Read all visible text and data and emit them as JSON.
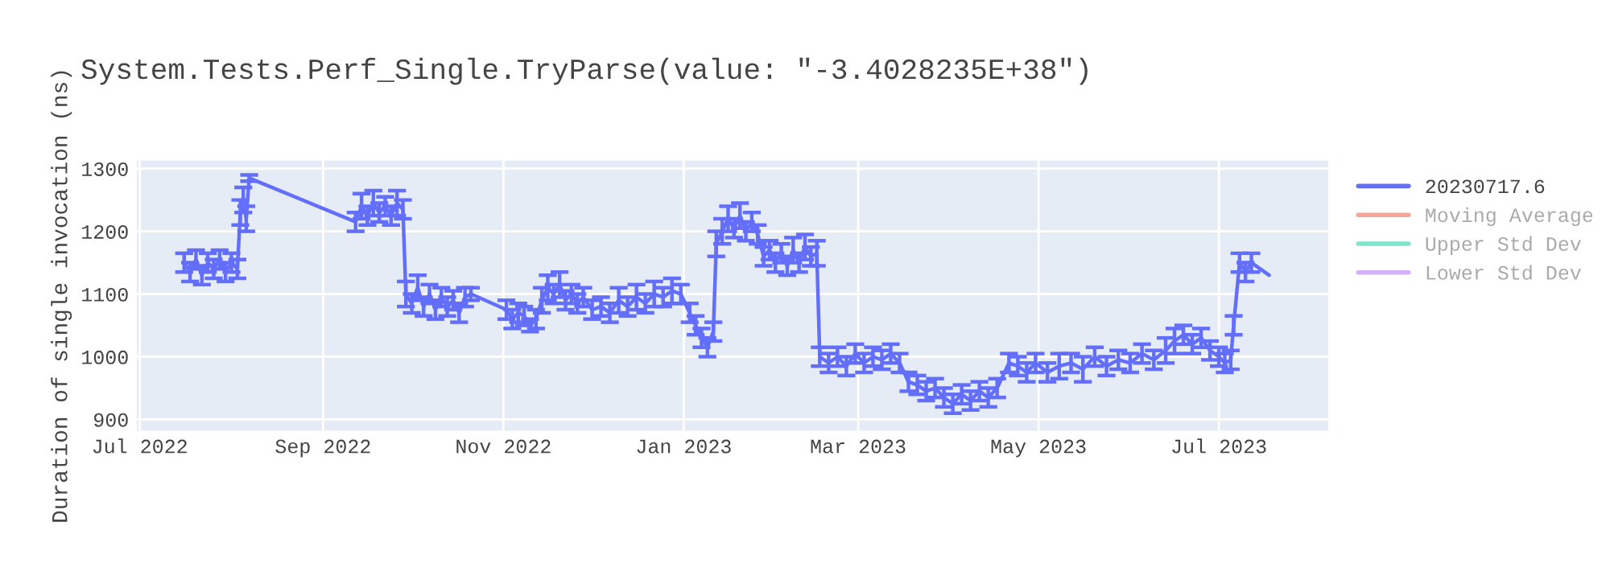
{
  "chart_data": {
    "type": "line",
    "title": "System.Tests.Perf_Single.TryParse(value: \"-3.4028235E+38\")",
    "ylabel": "Duration of single invocation (ns)",
    "xlim": [
      "2022-06-30",
      "2023-08-07"
    ],
    "ylim": [
      882,
      1313
    ],
    "xticks": [
      {
        "value": "2022-07-01",
        "label": "Jul 2022"
      },
      {
        "value": "2022-09-01",
        "label": "Sep 2022"
      },
      {
        "value": "2022-11-01",
        "label": "Nov 2022"
      },
      {
        "value": "2023-01-01",
        "label": "Jan 2023"
      },
      {
        "value": "2023-03-01",
        "label": "Mar 2023"
      },
      {
        "value": "2023-05-01",
        "label": "May 2023"
      },
      {
        "value": "2023-07-01",
        "label": "Jul 2023"
      }
    ],
    "yticks": [
      900,
      1000,
      1100,
      1200,
      1300
    ],
    "grid": true,
    "legend": "top right",
    "marker": "none",
    "line_style": "solid",
    "x": [
      "2022-07-16",
      "2022-07-18",
      "2022-07-20",
      "2022-07-22",
      "2022-07-24",
      "2022-07-26",
      "2022-07-28",
      "2022-07-30",
      "2022-08-01",
      "2022-08-03",
      "2022-08-04",
      "2022-08-05",
      "2022-08-06",
      "2022-08-07",
      "2022-09-12",
      "2022-09-14",
      "2022-09-16",
      "2022-09-18",
      "2022-09-20",
      "2022-09-22",
      "2022-09-24",
      "2022-09-26",
      "2022-09-28",
      "2022-09-29",
      "2022-10-01",
      "2022-10-03",
      "2022-10-05",
      "2022-10-07",
      "2022-10-09",
      "2022-10-11",
      "2022-10-13",
      "2022-10-15",
      "2022-10-17",
      "2022-10-19",
      "2022-10-21",
      "2022-11-02",
      "2022-11-04",
      "2022-11-06",
      "2022-11-08",
      "2022-11-10",
      "2022-11-12",
      "2022-11-14",
      "2022-11-16",
      "2022-11-18",
      "2022-11-20",
      "2022-11-22",
      "2022-11-24",
      "2022-11-26",
      "2022-11-28",
      "2022-12-01",
      "2022-12-04",
      "2022-12-07",
      "2022-12-10",
      "2022-12-13",
      "2022-12-16",
      "2022-12-19",
      "2022-12-22",
      "2022-12-25",
      "2022-12-28",
      "2022-12-31",
      "2023-01-03",
      "2023-01-05",
      "2023-01-07",
      "2023-01-09",
      "2023-01-11",
      "2023-01-12",
      "2023-01-14",
      "2023-01-16",
      "2023-01-18",
      "2023-01-20",
      "2023-01-22",
      "2023-01-24",
      "2023-01-26",
      "2023-01-28",
      "2023-01-30",
      "2023-02-01",
      "2023-02-03",
      "2023-02-05",
      "2023-02-07",
      "2023-02-09",
      "2023-02-11",
      "2023-02-13",
      "2023-02-15",
      "2023-02-16",
      "2023-02-19",
      "2023-02-22",
      "2023-02-25",
      "2023-02-28",
      "2023-03-03",
      "2023-03-06",
      "2023-03-09",
      "2023-03-12",
      "2023-03-15",
      "2023-03-18",
      "2023-03-21",
      "2023-03-24",
      "2023-03-27",
      "2023-03-30",
      "2023-04-02",
      "2023-04-05",
      "2023-04-08",
      "2023-04-11",
      "2023-04-14",
      "2023-04-17",
      "2023-04-21",
      "2023-04-24",
      "2023-04-27",
      "2023-04-30",
      "2023-05-04",
      "2023-05-08",
      "2023-05-12",
      "2023-05-16",
      "2023-05-20",
      "2023-05-24",
      "2023-05-28",
      "2023-06-01",
      "2023-06-05",
      "2023-06-09",
      "2023-06-13",
      "2023-06-16",
      "2023-06-19",
      "2023-06-22",
      "2023-06-25",
      "2023-06-28",
      "2023-07-01",
      "2023-07-03",
      "2023-07-05",
      "2023-07-06",
      "2023-07-08",
      "2023-07-10",
      "2023-07-12",
      "2023-07-18"
    ],
    "series": [
      {
        "name": "20230717.6",
        "color": "#636efa",
        "values": [
          1150,
          1135,
          1155,
          1130,
          1150,
          1140,
          1155,
          1135,
          1150,
          1140,
          1230,
          1250,
          1220,
          1285,
          1215,
          1240,
          1225,
          1245,
          1230,
          1240,
          1225,
          1245,
          1235,
          1100,
          1085,
          1110,
          1080,
          1100,
          1075,
          1095,
          1080,
          1090,
          1070,
          1095,
          1100,
          1075,
          1060,
          1070,
          1065,
          1050,
          1060,
          1090,
          1110,
          1100,
          1115,
          1090,
          1100,
          1085,
          1095,
          1075,
          1080,
          1070,
          1090,
          1080,
          1095,
          1085,
          1100,
          1095,
          1105,
          1100,
          1070,
          1050,
          1030,
          1015,
          1040,
          1180,
          1200,
          1220,
          1205,
          1225,
          1200,
          1215,
          1195,
          1160,
          1170,
          1150,
          1165,
          1145,
          1170,
          1150,
          1175,
          1160,
          1165,
          1000,
          990,
          1000,
          985,
          1005,
          990,
          1000,
          995,
          1005,
          990,
          960,
          955,
          945,
          950,
          935,
          925,
          940,
          930,
          945,
          935,
          950,
          990,
          985,
          975,
          990,
          975,
          985,
          990,
          980,
          1000,
          985,
          995,
          990,
          1005,
          995,
          1010,
          1025,
          1035,
          1020,
          1030,
          1010,
          1000,
          990,
          995,
          1050,
          1150,
          1135,
          1150,
          1130
        ],
        "errors": [
          15,
          15,
          15,
          15,
          15,
          15,
          15,
          15,
          15,
          15,
          20,
          20,
          20,
          5,
          15,
          20,
          15,
          20,
          15,
          15,
          15,
          20,
          15,
          20,
          15,
          20,
          15,
          15,
          15,
          15,
          15,
          15,
          15,
          15,
          10,
          15,
          15,
          15,
          15,
          10,
          15,
          20,
          20,
          15,
          20,
          15,
          15,
          15,
          15,
          15,
          15,
          15,
          20,
          15,
          20,
          15,
          20,
          15,
          20,
          15,
          15,
          15,
          15,
          15,
          15,
          20,
          20,
          20,
          15,
          20,
          15,
          15,
          15,
          15,
          15,
          15,
          15,
          15,
          20,
          15,
          20,
          15,
          20,
          15,
          15,
          15,
          15,
          15,
          15,
          15,
          15,
          15,
          15,
          15,
          15,
          15,
          15,
          15,
          15,
          15,
          15,
          15,
          15,
          15,
          15,
          15,
          15,
          15,
          15,
          20,
          15,
          20,
          15,
          15,
          15,
          15,
          15,
          15,
          20,
          20,
          15,
          15,
          15,
          15,
          15,
          15,
          15,
          15,
          15,
          15,
          15,
          null
        ]
      },
      {
        "name": "Moving Average",
        "color": "#f6a597",
        "values": [
          null,
          null,
          null,
          null,
          null,
          null,
          null,
          null,
          null,
          null,
          null,
          null,
          null,
          null,
          null,
          null,
          null,
          null,
          null,
          null,
          null,
          null,
          null,
          null,
          null,
          null,
          null,
          null,
          null,
          null,
          null,
          null,
          null,
          null,
          null,
          null,
          null,
          null,
          null,
          null,
          null,
          null,
          null,
          null,
          null,
          null,
          null,
          null,
          null,
          null,
          null,
          null,
          null,
          null,
          null,
          null,
          null,
          null,
          null,
          null,
          null,
          null,
          null,
          null,
          null,
          null,
          null,
          null,
          null,
          null,
          null,
          null,
          null,
          null,
          null,
          null,
          null,
          null,
          null,
          null,
          null,
          null,
          null,
          null,
          null,
          null,
          null,
          null,
          null,
          null,
          null,
          null,
          null,
          null,
          null,
          null,
          null,
          null,
          null,
          null,
          null,
          null,
          null,
          null,
          null,
          null,
          null,
          null,
          null,
          null,
          null,
          null,
          null,
          null,
          null,
          null,
          null,
          null,
          null,
          null,
          null,
          null,
          null,
          null,
          null,
          null,
          null,
          null,
          null,
          null,
          null,
          null
        ]
      },
      {
        "name": "Upper Std Dev",
        "color": "#7fe5ca",
        "values": [
          null,
          null,
          null,
          null,
          null,
          null,
          null,
          null,
          null,
          null,
          null,
          null,
          null,
          null,
          null,
          null,
          null,
          null,
          null,
          null,
          null,
          null,
          null,
          null,
          null,
          null,
          null,
          null,
          null,
          null,
          null,
          null,
          null,
          null,
          null,
          null,
          null,
          null,
          null,
          null,
          null,
          null,
          null,
          null,
          null,
          null,
          null,
          null,
          null,
          null,
          null,
          null,
          null,
          null,
          null,
          null,
          null,
          null,
          null,
          null,
          null,
          null,
          null,
          null,
          null,
          null,
          null,
          null,
          null,
          null,
          null,
          null,
          null,
          null,
          null,
          null,
          null,
          null,
          null,
          null,
          null,
          null,
          null,
          null,
          null,
          null,
          null,
          null,
          null,
          null,
          null,
          null,
          null,
          null,
          null,
          null,
          null,
          null,
          null,
          null,
          null,
          null,
          null,
          null,
          null,
          null,
          null,
          null,
          null,
          null,
          null,
          null,
          null,
          null,
          null,
          null,
          null,
          null,
          null,
          null,
          null,
          null,
          null,
          null,
          null,
          null,
          null,
          null,
          null,
          null,
          null,
          null
        ]
      },
      {
        "name": "Lower Std Dev",
        "color": "#d5b1fc",
        "values": [
          null,
          null,
          null,
          null,
          null,
          null,
          null,
          null,
          null,
          null,
          null,
          null,
          null,
          null,
          null,
          null,
          null,
          null,
          null,
          null,
          null,
          null,
          null,
          null,
          null,
          null,
          null,
          null,
          null,
          null,
          null,
          null,
          null,
          null,
          null,
          null,
          null,
          null,
          null,
          null,
          null,
          null,
          null,
          null,
          null,
          null,
          null,
          null,
          null,
          null,
          null,
          null,
          null,
          null,
          null,
          null,
          null,
          null,
          null,
          null,
          null,
          null,
          null,
          null,
          null,
          null,
          null,
          null,
          null,
          null,
          null,
          null,
          null,
          null,
          null,
          null,
          null,
          null,
          null,
          null,
          null,
          null,
          null,
          null,
          null,
          null,
          null,
          null,
          null,
          null,
          null,
          null,
          null,
          null,
          null,
          null,
          null,
          null,
          null,
          null,
          null,
          null,
          null,
          null,
          null,
          null,
          null,
          null,
          null,
          null,
          null,
          null,
          null,
          null,
          null,
          null,
          null,
          null,
          null,
          null,
          null,
          null,
          null,
          null,
          null,
          null,
          null,
          null,
          null,
          null,
          null,
          null
        ]
      }
    ]
  }
}
